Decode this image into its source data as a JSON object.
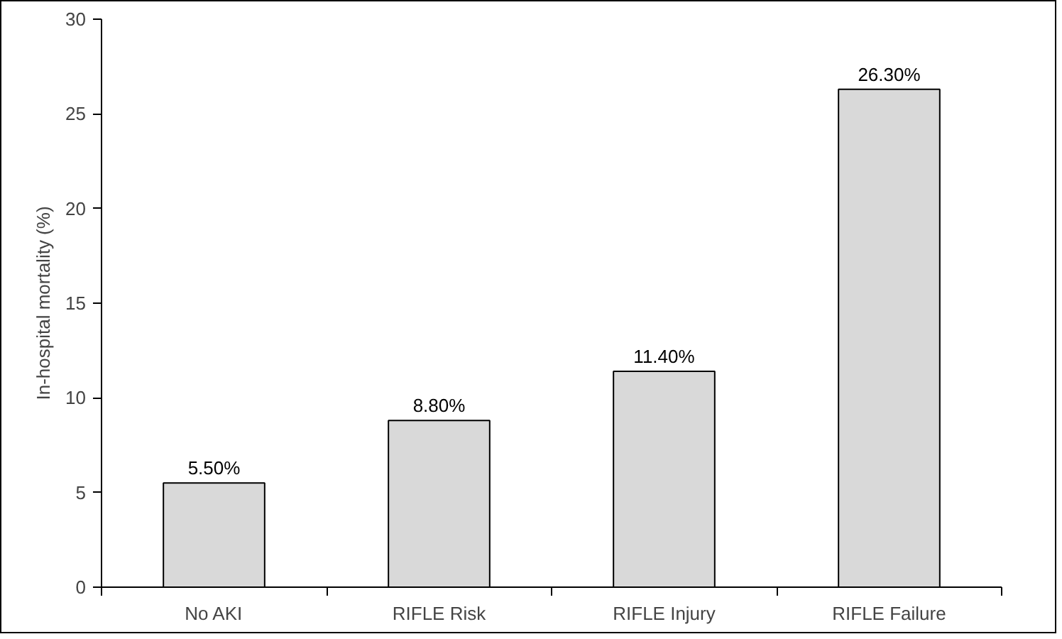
{
  "chart_data": {
    "type": "bar",
    "ylabel": "In-hospital mortality (%)",
    "categories": [
      "No AKI",
      "RIFLE Risk",
      "RIFLE Injury",
      "RIFLE Failure"
    ],
    "values": [
      5.5,
      8.8,
      11.4,
      26.3
    ],
    "value_labels": [
      "5.50%",
      "8.80%",
      "11.40%",
      "26.30%"
    ],
    "color": "#d9d9d9",
    "ylim": [
      0,
      30
    ],
    "yticks": [
      0,
      5,
      10,
      15,
      20,
      25,
      30
    ],
    "grid": false
  }
}
